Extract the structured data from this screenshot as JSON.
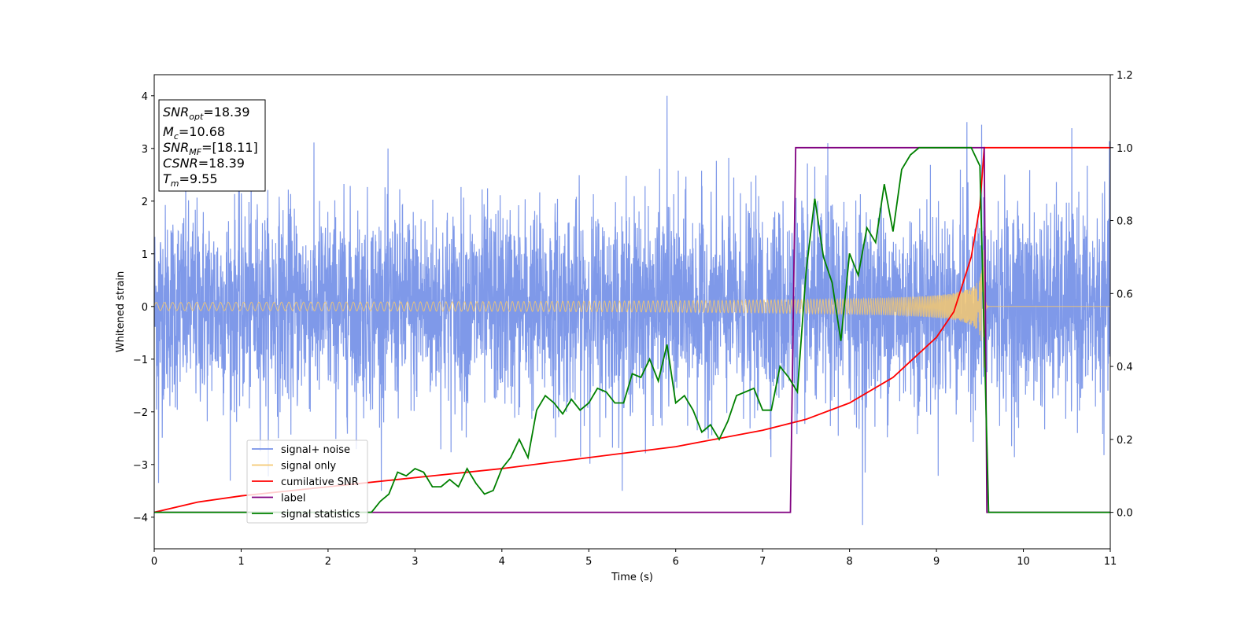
{
  "chart_data": {
    "type": "line",
    "title": "",
    "xlabel": "Time (s)",
    "ylabel": "Whitened strain",
    "xlim": [
      0,
      11
    ],
    "ylim": [
      -4.6,
      4.4
    ],
    "y2lim": [
      -0.1,
      1.2
    ],
    "xticks": [
      "0",
      "1",
      "2",
      "3",
      "4",
      "5",
      "6",
      "7",
      "8",
      "9",
      "10",
      "11"
    ],
    "yticks": [
      "−4",
      "−3",
      "−2",
      "−1",
      "0",
      "1",
      "2",
      "3",
      "4"
    ],
    "y2ticks": [
      "0.0",
      "0.2",
      "0.4",
      "0.6",
      "0.8",
      "1.0",
      "1.2"
    ],
    "grid": false,
    "legend_position": "lower-left",
    "annotation": {
      "snr_opt": {
        "sym": "SNR",
        "sub": "opt",
        "value": "=18.39"
      },
      "mc": {
        "sym": "M",
        "sub": "c",
        "value": "=10.68"
      },
      "snr_mf": {
        "sym": "SNR",
        "sub": "MF",
        "value": "=[18.11]"
      },
      "csnr": {
        "sym": "CSNR",
        "value": "=18.39"
      },
      "tm": {
        "sym": "T",
        "sub": "m",
        "value": "=9.55"
      }
    },
    "series": [
      {
        "name": "signal+ noise",
        "axis": "left",
        "color": "#7893e8",
        "description_values": {
          "noise_amplitude": 1.0,
          "peak_max": 4.0,
          "peak_min": -4.15
        }
      },
      {
        "name": "signal only",
        "axis": "left",
        "color": "#f5c870",
        "chirp": {
          "start_amplitude": 0.05,
          "peak_amplitude": 1.2,
          "merger_time": 9.55,
          "ringdown_end": 9.6
        }
      },
      {
        "name": "cumilative SNR",
        "axis": "right",
        "color": "#ff0000",
        "x": [
          0,
          0.5,
          1,
          2,
          3,
          4,
          5,
          6,
          7,
          7.5,
          8,
          8.5,
          9,
          9.2,
          9.4,
          9.5,
          9.55,
          9.6,
          11
        ],
        "y": [
          0.0,
          0.028,
          0.045,
          0.07,
          0.095,
          0.12,
          0.15,
          0.18,
          0.225,
          0.255,
          0.3,
          0.37,
          0.48,
          0.55,
          0.7,
          0.84,
          1.0,
          1.0,
          1.0
        ]
      },
      {
        "name": "label",
        "axis": "right",
        "color": "#800080",
        "x": [
          0,
          7.32,
          7.38,
          9.55,
          9.58,
          11
        ],
        "y": [
          0,
          0,
          1,
          1,
          0,
          0
        ]
      },
      {
        "name": "signal statistics",
        "axis": "right",
        "color": "#008000",
        "x": [
          0,
          2.5,
          2.6,
          2.7,
          2.8,
          2.9,
          3.0,
          3.1,
          3.2,
          3.3,
          3.4,
          3.5,
          3.6,
          3.7,
          3.8,
          3.9,
          4.0,
          4.1,
          4.2,
          4.3,
          4.4,
          4.5,
          4.6,
          4.7,
          4.8,
          4.9,
          5.0,
          5.1,
          5.2,
          5.3,
          5.4,
          5.5,
          5.6,
          5.7,
          5.8,
          5.9,
          6.0,
          6.1,
          6.2,
          6.3,
          6.4,
          6.5,
          6.6,
          6.7,
          6.8,
          6.9,
          7.0,
          7.1,
          7.2,
          7.3,
          7.4,
          7.5,
          7.6,
          7.7,
          7.8,
          7.9,
          8.0,
          8.1,
          8.2,
          8.3,
          8.4,
          8.5,
          8.6,
          8.7,
          8.8,
          9.0,
          9.2,
          9.4,
          9.5,
          9.6,
          11
        ],
        "y": [
          0,
          0,
          0.03,
          0.05,
          0.11,
          0.1,
          0.12,
          0.11,
          0.07,
          0.07,
          0.09,
          0.07,
          0.12,
          0.08,
          0.05,
          0.06,
          0.12,
          0.15,
          0.2,
          0.15,
          0.28,
          0.32,
          0.3,
          0.27,
          0.31,
          0.28,
          0.3,
          0.34,
          0.33,
          0.3,
          0.3,
          0.38,
          0.37,
          0.42,
          0.36,
          0.46,
          0.3,
          0.32,
          0.28,
          0.22,
          0.24,
          0.2,
          0.25,
          0.32,
          0.33,
          0.34,
          0.28,
          0.28,
          0.4,
          0.37,
          0.33,
          0.66,
          0.86,
          0.7,
          0.63,
          0.47,
          0.71,
          0.65,
          0.78,
          0.74,
          0.9,
          0.77,
          0.94,
          0.98,
          1.0,
          1.0,
          1.0,
          1.0,
          0.95,
          0.0,
          0.0
        ]
      }
    ]
  }
}
